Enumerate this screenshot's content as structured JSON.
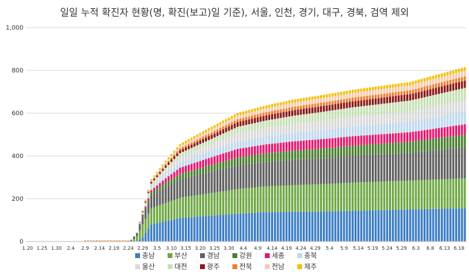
{
  "chart_data": {
    "type": "bar",
    "stacked": true,
    "title": "일일 누적 확진자 현황(명, 확진(보고)일 기준), 서울, 인천, 경기, 대구, 경북, 검역 제외",
    "xlabel": "",
    "ylabel": "",
    "ylim": [
      0,
      1000
    ],
    "yticks": [
      "0",
      "200",
      "400",
      "600",
      "800",
      "1,000"
    ],
    "xtick_labels": [
      "1.20",
      "1.25",
      "1.30",
      "2.4",
      "2.9",
      "2.14",
      "2.19",
      "2.24",
      "2.29",
      "3.5",
      "3.10",
      "3.15",
      "3.20",
      "3.25",
      "3.30",
      "4.4",
      "4.9",
      "4.14",
      "4.19",
      "4.24",
      "4.29",
      "5.4",
      "5.9",
      "5.14",
      "5.19",
      "5.24",
      "5.29",
      "6.3",
      "6.8",
      "6.13",
      "6.18"
    ],
    "n_days": 153,
    "grid": "horizontal",
    "legend_position": "bottom",
    "series": [
      {
        "name": "충남",
        "color": "#3B7DC4",
        "keypoints": [
          [
            0,
            0
          ],
          [
            34,
            0
          ],
          [
            38,
            0
          ],
          [
            40,
            20
          ],
          [
            43,
            80
          ],
          [
            48,
            95
          ],
          [
            53,
            110
          ],
          [
            58,
            115
          ],
          [
            63,
            120
          ],
          [
            73,
            130
          ],
          [
            83,
            138
          ],
          [
            103,
            140
          ],
          [
            133,
            150
          ],
          [
            152,
            155
          ]
        ]
      },
      {
        "name": "부산",
        "color": "#6FA844",
        "keypoints": [
          [
            0,
            0
          ],
          [
            34,
            0
          ],
          [
            36,
            1
          ],
          [
            38,
            25
          ],
          [
            40,
            60
          ],
          [
            43,
            75
          ],
          [
            48,
            85
          ],
          [
            53,
            95
          ],
          [
            63,
            105
          ],
          [
            73,
            115
          ],
          [
            93,
            125
          ],
          [
            113,
            132
          ],
          [
            133,
            135
          ],
          [
            152,
            140
          ]
        ]
      },
      {
        "name": "경남",
        "color": "#606060",
        "keypoints": [
          [
            0,
            0
          ],
          [
            34,
            0
          ],
          [
            38,
            10
          ],
          [
            40,
            35
          ],
          [
            43,
            60
          ],
          [
            48,
            75
          ],
          [
            53,
            85
          ],
          [
            63,
            100
          ],
          [
            73,
            110
          ],
          [
            93,
            118
          ],
          [
            113,
            125
          ],
          [
            133,
            130
          ],
          [
            152,
            145
          ]
        ]
      },
      {
        "name": "강원",
        "color": "#4B7F32",
        "keypoints": [
          [
            0,
            0
          ],
          [
            34,
            0
          ],
          [
            38,
            4
          ],
          [
            40,
            8
          ],
          [
            43,
            15
          ],
          [
            48,
            20
          ],
          [
            53,
            25
          ],
          [
            63,
            30
          ],
          [
            73,
            38
          ],
          [
            93,
            44
          ],
          [
            113,
            48
          ],
          [
            133,
            52
          ],
          [
            152,
            60
          ]
        ]
      },
      {
        "name": "세종",
        "color": "#E5186E",
        "keypoints": [
          [
            0,
            0
          ],
          [
            36,
            0
          ],
          [
            40,
            3
          ],
          [
            43,
            10
          ],
          [
            48,
            20
          ],
          [
            53,
            30
          ],
          [
            63,
            35
          ],
          [
            73,
            40
          ],
          [
            93,
            43
          ],
          [
            113,
            44
          ],
          [
            133,
            44
          ],
          [
            152,
            48
          ]
        ]
      },
      {
        "name": "충북",
        "color": "#BDD7EE",
        "keypoints": [
          [
            0,
            0
          ],
          [
            38,
            0
          ],
          [
            40,
            3
          ],
          [
            43,
            8
          ],
          [
            48,
            15
          ],
          [
            53,
            22
          ],
          [
            63,
            30
          ],
          [
            73,
            35
          ],
          [
            93,
            40
          ],
          [
            113,
            45
          ],
          [
            133,
            50
          ],
          [
            152,
            60
          ]
        ]
      },
      {
        "name": "울산",
        "color": "#D9D9D9",
        "keypoints": [
          [
            0,
            0
          ],
          [
            38,
            0
          ],
          [
            40,
            5
          ],
          [
            43,
            15
          ],
          [
            48,
            22
          ],
          [
            53,
            28
          ],
          [
            63,
            32
          ],
          [
            73,
            38
          ],
          [
            93,
            42
          ],
          [
            113,
            45
          ],
          [
            133,
            48
          ],
          [
            152,
            52
          ]
        ]
      },
      {
        "name": "대전",
        "color": "#C5E0B4",
        "keypoints": [
          [
            0,
            0
          ],
          [
            38,
            0
          ],
          [
            40,
            3
          ],
          [
            43,
            8
          ],
          [
            48,
            13
          ],
          [
            53,
            18
          ],
          [
            63,
            22
          ],
          [
            73,
            30
          ],
          [
            93,
            38
          ],
          [
            113,
            45
          ],
          [
            133,
            50
          ],
          [
            152,
            58
          ]
        ]
      },
      {
        "name": "광주",
        "color": "#8B1A1A",
        "keypoints": [
          [
            0,
            0
          ],
          [
            38,
            0
          ],
          [
            40,
            3
          ],
          [
            43,
            6
          ],
          [
            48,
            10
          ],
          [
            53,
            14
          ],
          [
            63,
            18
          ],
          [
            73,
            22
          ],
          [
            93,
            26
          ],
          [
            113,
            28
          ],
          [
            133,
            30
          ],
          [
            152,
            34
          ]
        ]
      },
      {
        "name": "전북",
        "color": "#ED7D31",
        "keypoints": [
          [
            0,
            0
          ],
          [
            38,
            0
          ],
          [
            40,
            2
          ],
          [
            43,
            5
          ],
          [
            48,
            7
          ],
          [
            53,
            9
          ],
          [
            63,
            12
          ],
          [
            73,
            14
          ],
          [
            93,
            16
          ],
          [
            113,
            17
          ],
          [
            133,
            18
          ],
          [
            152,
            20
          ]
        ]
      },
      {
        "name": "전남",
        "color": "#F8CBAD",
        "keypoints": [
          [
            0,
            0
          ],
          [
            38,
            0
          ],
          [
            40,
            2
          ],
          [
            43,
            5
          ],
          [
            48,
            8
          ],
          [
            53,
            10
          ],
          [
            63,
            14
          ],
          [
            73,
            16
          ],
          [
            93,
            20
          ],
          [
            113,
            22
          ],
          [
            133,
            24
          ],
          [
            152,
            26
          ]
        ]
      },
      {
        "name": "제주",
        "color": "#F0C000",
        "keypoints": [
          [
            0,
            0
          ],
          [
            38,
            0
          ],
          [
            40,
            2
          ],
          [
            43,
            5
          ],
          [
            48,
            8
          ],
          [
            53,
            10
          ],
          [
            63,
            12
          ],
          [
            73,
            13
          ],
          [
            93,
            14
          ],
          [
            113,
            15
          ],
          [
            133,
            15
          ],
          [
            152,
            17
          ]
        ]
      }
    ]
  }
}
